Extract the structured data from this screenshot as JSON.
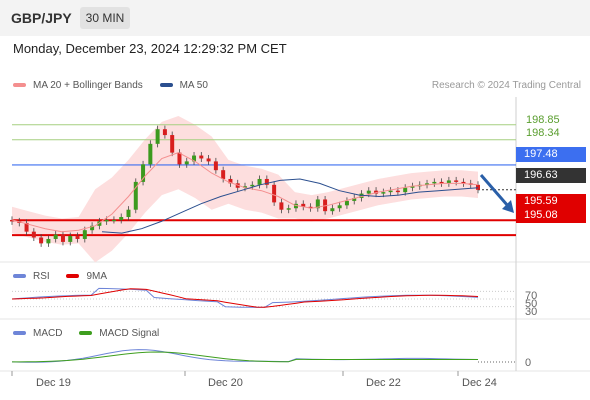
{
  "header": {
    "symbol": "GBP/JPY",
    "interval": "30 MIN",
    "datetime": "Monday, December 23, 2024 12:29:32 PM CET"
  },
  "legend": {
    "items": [
      {
        "label": "MA 20 + Bollinger Bands",
        "color": "#f48f8f"
      },
      {
        "label": "MA 50",
        "color": "#2b4f8f"
      }
    ],
    "credit": "Research © 2024 Trading Central"
  },
  "levels": {
    "resistance_green_1": "198.85",
    "resistance_green_2": "198.34",
    "blue_level": "197.48",
    "last_price": "196.63",
    "support_red_1": "195.59",
    "support_red_2": "195.08"
  },
  "rsi_legend": [
    {
      "label": "RSI",
      "color": "#6e85d8"
    },
    {
      "label": "9MA",
      "color": "#e00000"
    }
  ],
  "rsi_ticks": [
    "70",
    "50",
    "30"
  ],
  "macd_legend": [
    {
      "label": "MACD",
      "color": "#6e85d8"
    },
    {
      "label": "MACD Signal",
      "color": "#3e9e1e"
    }
  ],
  "macd_ticks": [
    "0"
  ],
  "xaxis": [
    "Dec 19",
    "Dec 20",
    "Dec 22",
    "Dec 24"
  ],
  "chart_data": {
    "type": "line",
    "title": "GBP/JPY 30 MIN",
    "price_axis_range": [
      194.3,
      199.8
    ],
    "close_series_approx": [
      195.55,
      195.5,
      195.2,
      195.0,
      194.8,
      194.95,
      195.1,
      194.85,
      195.05,
      194.95,
      195.25,
      195.4,
      195.55,
      195.6,
      195.6,
      195.7,
      195.95,
      196.9,
      197.5,
      198.2,
      198.7,
      198.5,
      197.9,
      197.5,
      197.6,
      197.8,
      197.7,
      197.6,
      197.3,
      197.0,
      196.85,
      196.7,
      196.75,
      196.8,
      197.0,
      196.8,
      196.2,
      195.95,
      196.0,
      196.15,
      196.05,
      196.0,
      196.3,
      195.9,
      196.0,
      196.1,
      196.25,
      196.35,
      196.5,
      196.6,
      196.5,
      196.55,
      196.6,
      196.55,
      196.7,
      196.75,
      196.8,
      196.85,
      196.9,
      196.85,
      196.95,
      196.9,
      196.85,
      196.8,
      196.63
    ],
    "ma20_approx": [
      195.6,
      195.45,
      195.3,
      195.2,
      195.25,
      195.4,
      195.8,
      196.4,
      197.1,
      197.7,
      197.9,
      197.6,
      197.2,
      196.9,
      196.7,
      196.6,
      196.4,
      196.1,
      196.0,
      196.1,
      196.25,
      196.4,
      196.55,
      196.65,
      196.75,
      196.8,
      196.85,
      196.85,
      196.8
    ],
    "ma50_approx": [
      195.2,
      195.15,
      195.3,
      195.55,
      195.85,
      196.15,
      196.4,
      196.6,
      196.8,
      196.95,
      197.0,
      196.85,
      196.6,
      196.45,
      196.4,
      196.45,
      196.55,
      196.6,
      196.65,
      196.7
    ],
    "levels": [
      198.85,
      198.34,
      197.48,
      196.63,
      195.59,
      195.08
    ],
    "rsi": {
      "ticks": [
        70,
        50,
        30
      ]
    },
    "macd": {
      "ticks": [
        0
      ]
    },
    "x_tick_labels": [
      "Dec 19",
      "Dec 20",
      "Dec 22",
      "Dec 24"
    ]
  }
}
